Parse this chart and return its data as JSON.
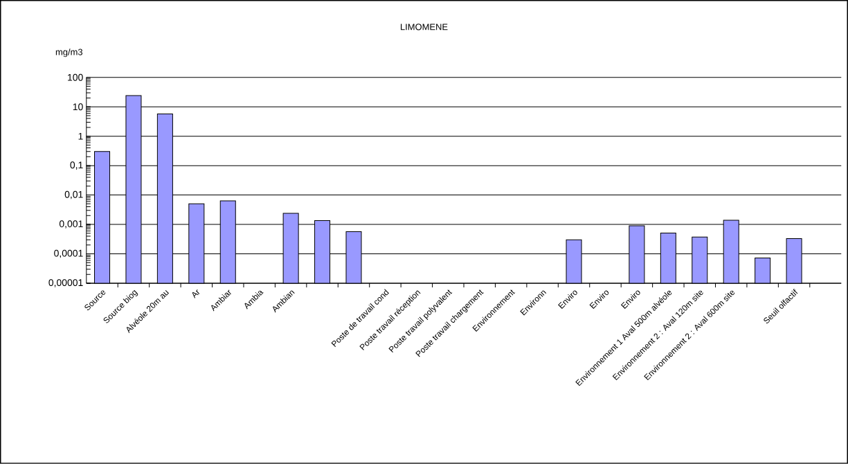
{
  "chart_data": {
    "type": "bar",
    "title": "LIMOMENE",
    "ylabel": "mg/m3",
    "categories": [
      "Source",
      "Source biog",
      "Alvéole 20m au",
      "Ar",
      "Ambiar",
      "Ambia",
      "Ambian",
      null,
      null,
      "Poste de travail cond",
      "Poste travail réception",
      "Poste travail polyvalent",
      "Poste travail chargement",
      "Environnement",
      "Environn",
      "Enviro",
      "Enviro",
      "Enviro",
      "Environnement 1 Aval 500m alvéole",
      "Environnement 2 : Aval 120m site",
      "Environnement 2 : Aval 600m site",
      null,
      "Seuil olfactif",
      null
    ],
    "values": [
      0.3,
      24,
      5.7,
      0.005,
      0.0063,
      null,
      0.0024,
      0.00135,
      0.00057,
      null,
      null,
      null,
      null,
      null,
      null,
      0.0003,
      null,
      0.0009,
      0.00051,
      0.00037,
      0.00138,
      7.2e-05,
      0.00033,
      null
    ],
    "color": "#9999ff",
    "log": "y",
    "grid": "y",
    "ylim": [
      1e-05,
      100
    ],
    "yticks": [
      {
        "value": 1e-05,
        "label": "0,00001"
      },
      {
        "value": 0.0001,
        "label": "0,0001"
      },
      {
        "value": 0.001,
        "label": "0,001"
      },
      {
        "value": 0.01,
        "label": "0,01"
      },
      {
        "value": 0.1,
        "label": "0,1"
      },
      1,
      10,
      100
    ]
  }
}
